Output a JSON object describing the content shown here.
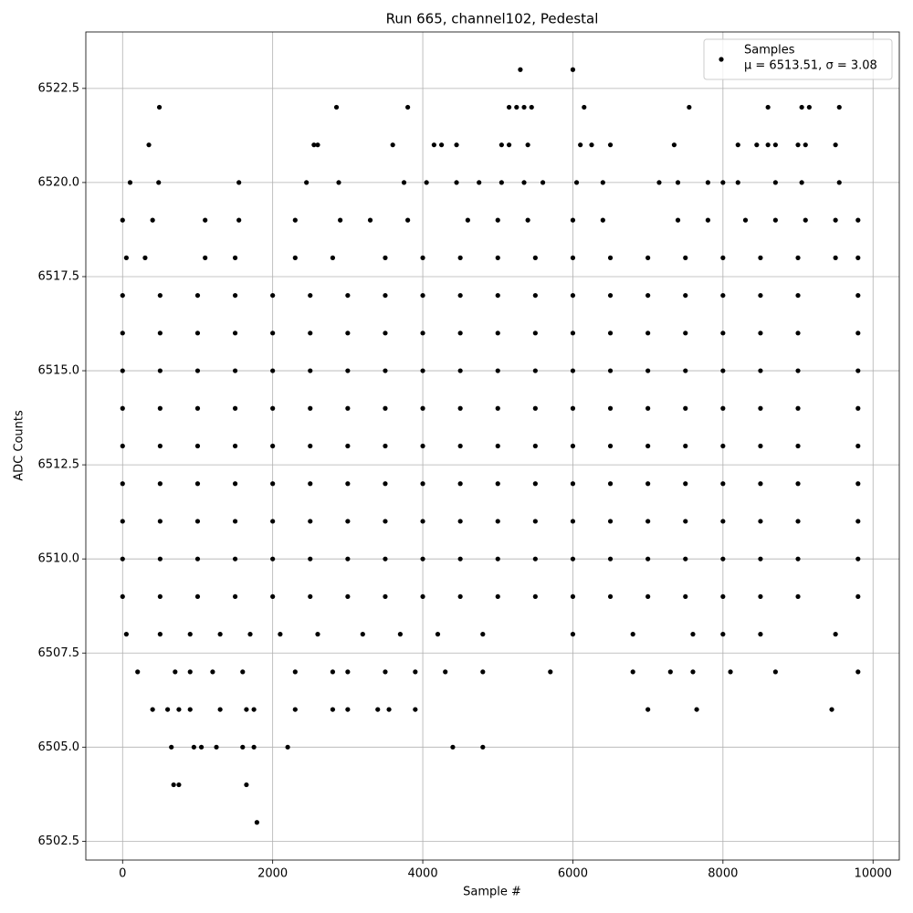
{
  "chart_data": {
    "type": "scatter",
    "title": "Run 665, channel102, Pedestal",
    "x_label": "Sample #",
    "y_label": "ADC Counts",
    "xlim": [
      -490,
      10350
    ],
    "ylim": [
      6502.0,
      6524.0
    ],
    "xticks": [
      0,
      2000,
      4000,
      6000,
      8000,
      10000
    ],
    "yticks": [
      6502.5,
      {
        "value": 6505,
        "label": "6505.0"
      },
      6507.5,
      {
        "value": 6510,
        "label": "6510.0"
      },
      6512.5,
      {
        "value": 6515,
        "label": "6515.0"
      },
      6517.5,
      {
        "value": 6520,
        "label": "6520.0"
      },
      6522.5
    ],
    "grid": true,
    "legend": "upper right",
    "legend_note": "μ = 6513.51, σ = 3.08",
    "series": [
      {
        "name": "Samples",
        "color": "#000000",
        "x": [
          0,
          500,
          1000,
          1500,
          2000,
          2500,
          3000,
          3500,
          4000,
          4500,
          5000,
          5500,
          6000,
          6500,
          7000,
          7500,
          8000,
          8500,
          9000,
          9800,
          0,
          500,
          1000,
          1500,
          2000,
          2500,
          3000,
          3500,
          4000,
          4500,
          5000,
          5500,
          6000,
          6500,
          7000,
          7500,
          8000,
          8500,
          9000,
          9800,
          0,
          500,
          1000,
          1500,
          2000,
          2500,
          3000,
          3500,
          4000,
          4500,
          5000,
          5500,
          6000,
          6500,
          7000,
          7500,
          8000,
          8500,
          9000,
          9800,
          0,
          500,
          1000,
          1500,
          2000,
          2500,
          3000,
          3500,
          4000,
          4500,
          5000,
          5500,
          6000,
          6500,
          7000,
          7500,
          8000,
          8500,
          9000,
          9800,
          0,
          500,
          1000,
          1500,
          2000,
          2500,
          3000,
          3500,
          4000,
          4500,
          5000,
          5500,
          6000,
          6500,
          7000,
          7500,
          8000,
          8500,
          9000,
          9800,
          0,
          500,
          1000,
          1500,
          2000,
          2500,
          3000,
          3500,
          4000,
          4500,
          5000,
          5500,
          6000,
          6500,
          7000,
          7500,
          8000,
          8500,
          9000,
          9800,
          0,
          500,
          1000,
          1500,
          2000,
          2500,
          3000,
          3500,
          4000,
          4500,
          5000,
          5500,
          6000,
          6500,
          7000,
          7500,
          8000,
          8500,
          9000,
          9800,
          0,
          500,
          1000,
          1500,
          2000,
          2500,
          3000,
          3500,
          4000,
          4500,
          5000,
          5500,
          6000,
          6500,
          7000,
          7500,
          8000,
          8500,
          9000,
          9800,
          0,
          500,
          1000,
          1500,
          2000,
          2500,
          3000,
          3500,
          4000,
          4500,
          5000,
          5500,
          6000,
          6500,
          7000,
          7500,
          8000,
          8500,
          9000,
          9800,
          50,
          300,
          1100,
          1500,
          2300,
          2800,
          3500,
          4000,
          4500,
          5000,
          5500,
          6000,
          6500,
          7000,
          7500,
          8000,
          8500,
          9000,
          9500,
          9800,
          0,
          400,
          1100,
          1550,
          2300,
          2900,
          3300,
          3800,
          4600,
          5000,
          5400,
          6000,
          6400,
          7400,
          7800,
          8300,
          8700,
          9100,
          9500,
          9800,
          50,
          500,
          900,
          1300,
          1700,
          2100,
          2600,
          3200,
          3700,
          4200,
          4800,
          6000,
          6800,
          7600,
          8000,
          8500,
          9500,
          200,
          700,
          900,
          1200,
          1600,
          2300,
          2800,
          3000,
          3500,
          3900,
          4300,
          4800,
          5700,
          6800,
          7300,
          7600,
          8100,
          8700,
          9800,
          400,
          600,
          750,
          900,
          1300,
          1650,
          1750,
          2300,
          2800,
          3000,
          3400,
          3550,
          3900,
          7000,
          7650,
          9450,
          650,
          950,
          1050,
          1250,
          1600,
          1750,
          2200,
          4400,
          4800,
          680,
          750,
          1650,
          1790,
          100,
          480,
          1550,
          2450,
          2880,
          3750,
          4050,
          4450,
          4750,
          5050,
          5350,
          5600,
          6050,
          6400,
          7150,
          7400,
          7800,
          8000,
          8200,
          8700,
          9050,
          9550,
          350,
          2550,
          2600,
          3600,
          4150,
          4250,
          4450,
          5050,
          5150,
          5400,
          6100,
          6250,
          6500,
          7350,
          8200,
          8450,
          8600,
          8700,
          9000,
          9100,
          9500,
          490,
          2850,
          3800,
          5150,
          5250,
          5350,
          5450,
          6150,
          7550,
          8600,
          9050,
          9150,
          9550,
          5300,
          6000
        ],
        "y": [
          6509,
          6509,
          6509,
          6509,
          6509,
          6509,
          6509,
          6509,
          6509,
          6509,
          6509,
          6509,
          6509,
          6509,
          6509,
          6509,
          6509,
          6509,
          6509,
          6509,
          6510,
          6510,
          6510,
          6510,
          6510,
          6510,
          6510,
          6510,
          6510,
          6510,
          6510,
          6510,
          6510,
          6510,
          6510,
          6510,
          6510,
          6510,
          6510,
          6510,
          6511,
          6511,
          6511,
          6511,
          6511,
          6511,
          6511,
          6511,
          6511,
          6511,
          6511,
          6511,
          6511,
          6511,
          6511,
          6511,
          6511,
          6511,
          6511,
          6511,
          6512,
          6512,
          6512,
          6512,
          6512,
          6512,
          6512,
          6512,
          6512,
          6512,
          6512,
          6512,
          6512,
          6512,
          6512,
          6512,
          6512,
          6512,
          6512,
          6512,
          6513,
          6513,
          6513,
          6513,
          6513,
          6513,
          6513,
          6513,
          6513,
          6513,
          6513,
          6513,
          6513,
          6513,
          6513,
          6513,
          6513,
          6513,
          6513,
          6513,
          6514,
          6514,
          6514,
          6514,
          6514,
          6514,
          6514,
          6514,
          6514,
          6514,
          6514,
          6514,
          6514,
          6514,
          6514,
          6514,
          6514,
          6514,
          6514,
          6514,
          6515,
          6515,
          6515,
          6515,
          6515,
          6515,
          6515,
          6515,
          6515,
          6515,
          6515,
          6515,
          6515,
          6515,
          6515,
          6515,
          6515,
          6515,
          6515,
          6515,
          6516,
          6516,
          6516,
          6516,
          6516,
          6516,
          6516,
          6516,
          6516,
          6516,
          6516,
          6516,
          6516,
          6516,
          6516,
          6516,
          6516,
          6516,
          6516,
          6516,
          6517,
          6517,
          6517,
          6517,
          6517,
          6517,
          6517,
          6517,
          6517,
          6517,
          6517,
          6517,
          6517,
          6517,
          6517,
          6517,
          6517,
          6517,
          6517,
          6517,
          6518,
          6518,
          6518,
          6518,
          6518,
          6518,
          6518,
          6518,
          6518,
          6518,
          6518,
          6518,
          6518,
          6518,
          6518,
          6518,
          6518,
          6518,
          6518,
          6518,
          6519,
          6519,
          6519,
          6519,
          6519,
          6519,
          6519,
          6519,
          6519,
          6519,
          6519,
          6519,
          6519,
          6519,
          6519,
          6519,
          6519,
          6519,
          6519,
          6519,
          6508,
          6508,
          6508,
          6508,
          6508,
          6508,
          6508,
          6508,
          6508,
          6508,
          6508,
          6508,
          6508,
          6508,
          6508,
          6508,
          6508,
          6507,
          6507,
          6507,
          6507,
          6507,
          6507,
          6507,
          6507,
          6507,
          6507,
          6507,
          6507,
          6507,
          6507,
          6507,
          6507,
          6507,
          6507,
          6507,
          6506,
          6506,
          6506,
          6506,
          6506,
          6506,
          6506,
          6506,
          6506,
          6506,
          6506,
          6506,
          6506,
          6506,
          6506,
          6506,
          6505,
          6505,
          6505,
          6505,
          6505,
          6505,
          6505,
          6505,
          6505,
          6504,
          6504,
          6504,
          6503,
          6520,
          6520,
          6520,
          6520,
          6520,
          6520,
          6520,
          6520,
          6520,
          6520,
          6520,
          6520,
          6520,
          6520,
          6520,
          6520,
          6520,
          6520,
          6520,
          6520,
          6520,
          6520,
          6521,
          6521,
          6521,
          6521,
          6521,
          6521,
          6521,
          6521,
          6521,
          6521,
          6521,
          6521,
          6521,
          6521,
          6521,
          6521,
          6521,
          6521,
          6521,
          6521,
          6521,
          6522,
          6522,
          6522,
          6522,
          6522,
          6522,
          6522,
          6522,
          6522,
          6522,
          6522,
          6522,
          6522,
          6523,
          6523
        ]
      }
    ]
  }
}
